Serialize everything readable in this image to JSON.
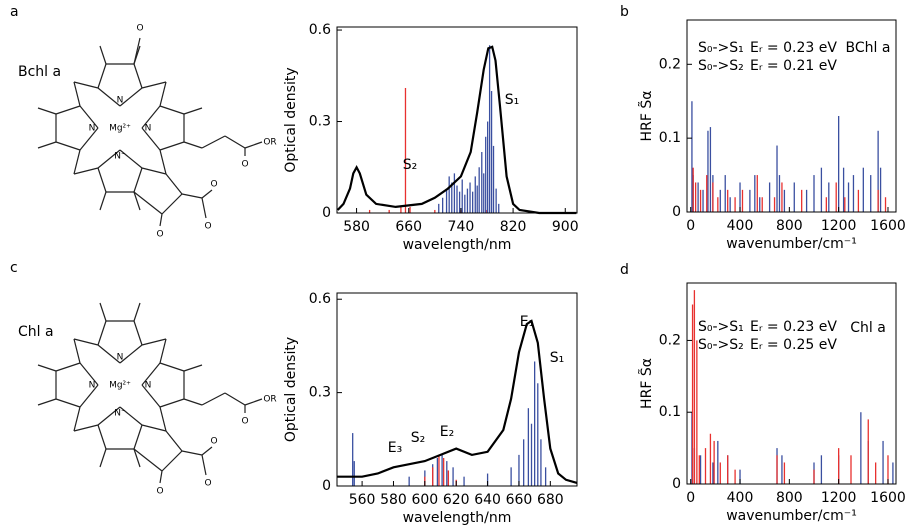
{
  "panels": [
    "a",
    "b",
    "c",
    "d"
  ],
  "molecules": [
    {
      "name": "Bchl a",
      "atoms": [
        "Mg²⁺",
        "N",
        "N",
        "N⁻",
        "N",
        "O",
        "O",
        "O",
        "O",
        "OR",
        "O"
      ]
    },
    {
      "name": "Chl a",
      "atoms": [
        "Mg²⁺",
        "N",
        "N",
        "N⁻",
        "N",
        "O",
        "O",
        "O",
        "O",
        "OR"
      ]
    }
  ],
  "chart_data": [
    {
      "type": "spectrum",
      "xlabel": "wavelength/nm",
      "ylabel": "Optical density",
      "xlim": [
        550,
        918
      ],
      "ylim": [
        0,
        0.61
      ],
      "xticks": [
        580,
        660,
        740,
        820,
        900
      ],
      "yticks": [
        0,
        0.3,
        0.6
      ],
      "series": [
        {
          "style": "stick",
          "color": "#e8312f",
          "x": [
            600,
            630,
            648,
            655,
            662,
            700,
            740,
            780
          ],
          "values": [
            0.01,
            0.01,
            0.02,
            0.41,
            0.02,
            0.01,
            0.01,
            0.01
          ]
        },
        {
          "style": "stick",
          "color": "#3a4fa0",
          "x": [
            706,
            712,
            718,
            722,
            726,
            730,
            734,
            738,
            742,
            746,
            750,
            754,
            758,
            762,
            765,
            768,
            772,
            775,
            778,
            781,
            784,
            787,
            790,
            794,
            798
          ],
          "values": [
            0.03,
            0.05,
            0.08,
            0.12,
            0.1,
            0.13,
            0.09,
            0.07,
            0.11,
            0.06,
            0.08,
            0.1,
            0.07,
            0.12,
            0.09,
            0.15,
            0.2,
            0.13,
            0.25,
            0.3,
            0.55,
            0.4,
            0.22,
            0.08,
            0.03
          ]
        },
        {
          "style": "line",
          "color": "#000000",
          "x": [
            551,
            560,
            570,
            575,
            580,
            585,
            595,
            610,
            640,
            680,
            700,
            720,
            740,
            755,
            765,
            775,
            782,
            788,
            793,
            800,
            810,
            820,
            830,
            860,
            917
          ],
          "values": [
            0.01,
            0.03,
            0.08,
            0.13,
            0.15,
            0.13,
            0.06,
            0.03,
            0.02,
            0.03,
            0.05,
            0.08,
            0.12,
            0.2,
            0.33,
            0.47,
            0.54,
            0.545,
            0.5,
            0.35,
            0.12,
            0.03,
            0.01,
            0,
            0
          ]
        }
      ],
      "annotations": [
        {
          "text": "S₂",
          "color": "#e8312f"
        },
        {
          "text": "S₁",
          "color": "#3a4fa0"
        }
      ]
    },
    {
      "type": "stick",
      "xlabel": "wavenumber/cm⁻¹",
      "ylabel": "HRF S̃α",
      "xlim": [
        -30,
        1665
      ],
      "ylim": [
        0,
        0.26
      ],
      "xticks": [
        0,
        400,
        800,
        1200,
        1600
      ],
      "yticks": [
        0,
        0.1,
        0.2
      ],
      "series": [
        {
          "name": "S₀->S₁",
          "note": "Eᵣ = 0.23 eV",
          "color": "#3a4fa0",
          "x": [
            10,
            20,
            60,
            100,
            140,
            160,
            180,
            240,
            280,
            320,
            400,
            480,
            520,
            560,
            640,
            700,
            720,
            760,
            840,
            940,
            1000,
            1060,
            1120,
            1200,
            1240,
            1280,
            1320,
            1400,
            1460,
            1520,
            1540
          ],
          "values": [
            0.15,
            0.05,
            0.04,
            0.03,
            0.11,
            0.115,
            0.05,
            0.03,
            0.05,
            0.02,
            0.04,
            0.03,
            0.05,
            0.02,
            0.04,
            0.09,
            0.05,
            0.03,
            0.04,
            0.03,
            0.05,
            0.06,
            0.04,
            0.13,
            0.06,
            0.04,
            0.05,
            0.06,
            0.05,
            0.11,
            0.06
          ]
        },
        {
          "name": "S₀->S₂",
          "note": "Eᵣ = 0.21 eV",
          "color": "#e8312f",
          "x": [
            20,
            40,
            80,
            130,
            180,
            220,
            300,
            360,
            420,
            540,
            580,
            680,
            740,
            900,
            1100,
            1180,
            1250,
            1360,
            1520,
            1580
          ],
          "values": [
            0.06,
            0.04,
            0.03,
            0.05,
            0.04,
            0.02,
            0.03,
            0.02,
            0.03,
            0.05,
            0.02,
            0.02,
            0.04,
            0.03,
            0.02,
            0.04,
            0.02,
            0.03,
            0.03,
            0.02
          ]
        }
      ],
      "annotations": [
        {
          "text": "BChl a",
          "color": "#000000"
        }
      ]
    },
    {
      "type": "spectrum",
      "xlabel": "wavelength/nm",
      "ylabel": "Optical density",
      "xlim": [
        544,
        697
      ],
      "ylim": [
        0,
        0.62
      ],
      "xticks": [
        560,
        580,
        600,
        620,
        640,
        660,
        680
      ],
      "yticks": [
        0,
        0.3,
        0.6
      ],
      "series": [
        {
          "style": "stick",
          "color": "#3a4fa0",
          "x": [
            554,
            555,
            590,
            600,
            605,
            608,
            611,
            614,
            618,
            625,
            640,
            655,
            660,
            663,
            666,
            668,
            670,
            672,
            674,
            677
          ],
          "values": [
            0.17,
            0.08,
            0.03,
            0.05,
            0.07,
            0.09,
            0.1,
            0.08,
            0.06,
            0.03,
            0.04,
            0.06,
            0.1,
            0.15,
            0.25,
            0.2,
            0.4,
            0.33,
            0.15,
            0.06
          ]
        },
        {
          "style": "stick",
          "color": "#e8312f",
          "x": [
            600,
            605,
            609,
            612,
            615,
            620
          ],
          "values": [
            0.03,
            0.06,
            0.1,
            0.09,
            0.05,
            0.02
          ]
        },
        {
          "style": "line",
          "color": "#000000",
          "x": [
            544,
            560,
            570,
            580,
            590,
            600,
            610,
            620,
            630,
            640,
            650,
            655,
            660,
            665,
            668,
            672,
            676,
            680,
            685,
            690,
            697
          ],
          "values": [
            0.03,
            0.03,
            0.04,
            0.06,
            0.07,
            0.08,
            0.1,
            0.12,
            0.1,
            0.11,
            0.18,
            0.28,
            0.43,
            0.52,
            0.53,
            0.46,
            0.28,
            0.12,
            0.04,
            0.02,
            0.01
          ]
        }
      ],
      "annotations": [
        {
          "text": "E₃",
          "color": "#000000"
        },
        {
          "text": "S₂",
          "color": "#e8312f"
        },
        {
          "text": "E₂",
          "color": "#000000"
        },
        {
          "text": "E₁",
          "color": "#000000"
        },
        {
          "text": "S₁",
          "color": "#3a4fa0"
        }
      ]
    },
    {
      "type": "stick",
      "xlabel": "wavenumber/cm⁻¹",
      "ylabel": "HRF S̃α",
      "xlim": [
        -30,
        1665
      ],
      "ylim": [
        0,
        0.28
      ],
      "xticks": [
        0,
        400,
        800,
        1200,
        1600
      ],
      "yticks": [
        0,
        0.1,
        0.2
      ],
      "series": [
        {
          "name": "S₀->S₁",
          "note": "Eᵣ = 0.23 eV",
          "color": "#3a4fa0",
          "x": [
            10,
            30,
            80,
            180,
            220,
            300,
            400,
            700,
            740,
            1000,
            1060,
            1200,
            1380,
            1440,
            1560,
            1640
          ],
          "values": [
            0.1,
            0.05,
            0.04,
            0.03,
            0.06,
            0.04,
            0.02,
            0.05,
            0.04,
            0.03,
            0.04,
            0.04,
            0.1,
            0.06,
            0.06,
            0.03
          ]
        },
        {
          "name": "S₀->S₂",
          "note": "Eᵣ = 0.25 eV",
          "color": "#e8312f",
          "x": [
            15,
            30,
            50,
            70,
            120,
            160,
            190,
            240,
            300,
            360,
            700,
            760,
            1000,
            1200,
            1300,
            1440,
            1500,
            1600
          ],
          "values": [
            0.25,
            0.27,
            0.2,
            0.04,
            0.05,
            0.07,
            0.06,
            0.03,
            0.04,
            0.02,
            0.04,
            0.03,
            0.02,
            0.05,
            0.04,
            0.09,
            0.03,
            0.04
          ]
        }
      ],
      "annotations": [
        {
          "text": "Chl a",
          "color": "#000000"
        }
      ]
    }
  ]
}
